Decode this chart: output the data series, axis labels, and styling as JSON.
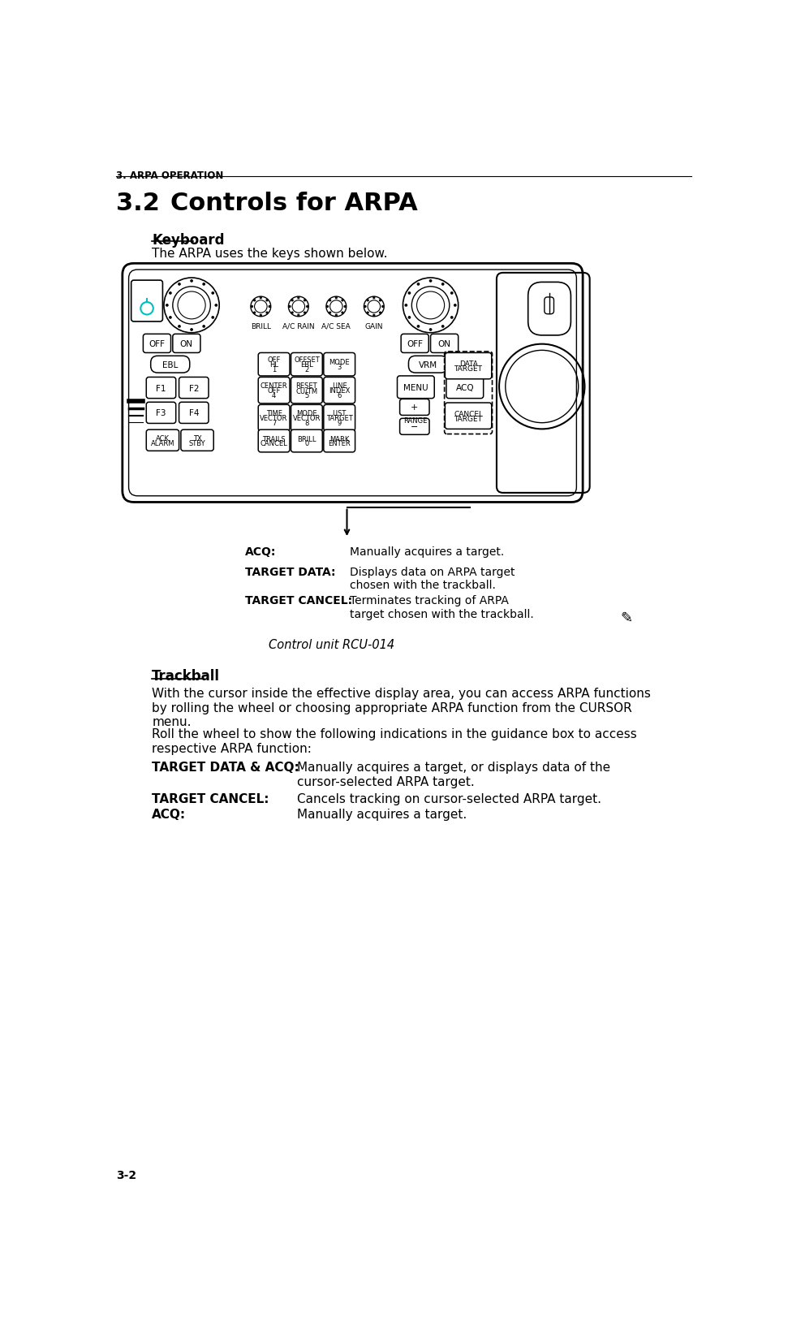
{
  "page_header": "3. ARPA OPERATION",
  "section_number": "3.2",
  "section_title": "Controls for ARPA",
  "subsection1": "Keyboard",
  "subsection1_intro": "The ARPA uses the keys shown below.",
  "caption": "Control unit RCU-014",
  "acq_label": "ACQ:",
  "acq_desc": "Manually acquires a target.",
  "target_data_label": "TARGET DATA:",
  "target_data_desc": "Displays data on ARPA target\nchosen with the trackball.",
  "target_cancel_label": "TARGET CANCEL:",
  "target_cancel_desc": "Terminates tracking of ARPA\ntarget chosen with the trackball.",
  "subsection2": "Trackball",
  "trackball_para1": "With the cursor inside the effective display area, you can access ARPA functions\nby rolling the wheel or choosing appropriate ARPA function from the CURSOR\nmenu.",
  "trackball_para2": "Roll the wheel to show the following indications in the guidance box to access\nrespective ARPA function:",
  "td_acq_label": "TARGET DATA & ACQ:",
  "td_acq_desc": "Manually acquires a target, or displays data of the\ncursor-selected ARPA target.",
  "tc_label": "TARGET CANCEL:",
  "tc_desc": "Cancels tracking on cursor-selected ARPA target.",
  "acq2_label": "ACQ:",
  "acq2_desc": "Manually acquires a target.",
  "page_num": "3-2",
  "bg_color": "#ffffff",
  "text_color": "#000000"
}
